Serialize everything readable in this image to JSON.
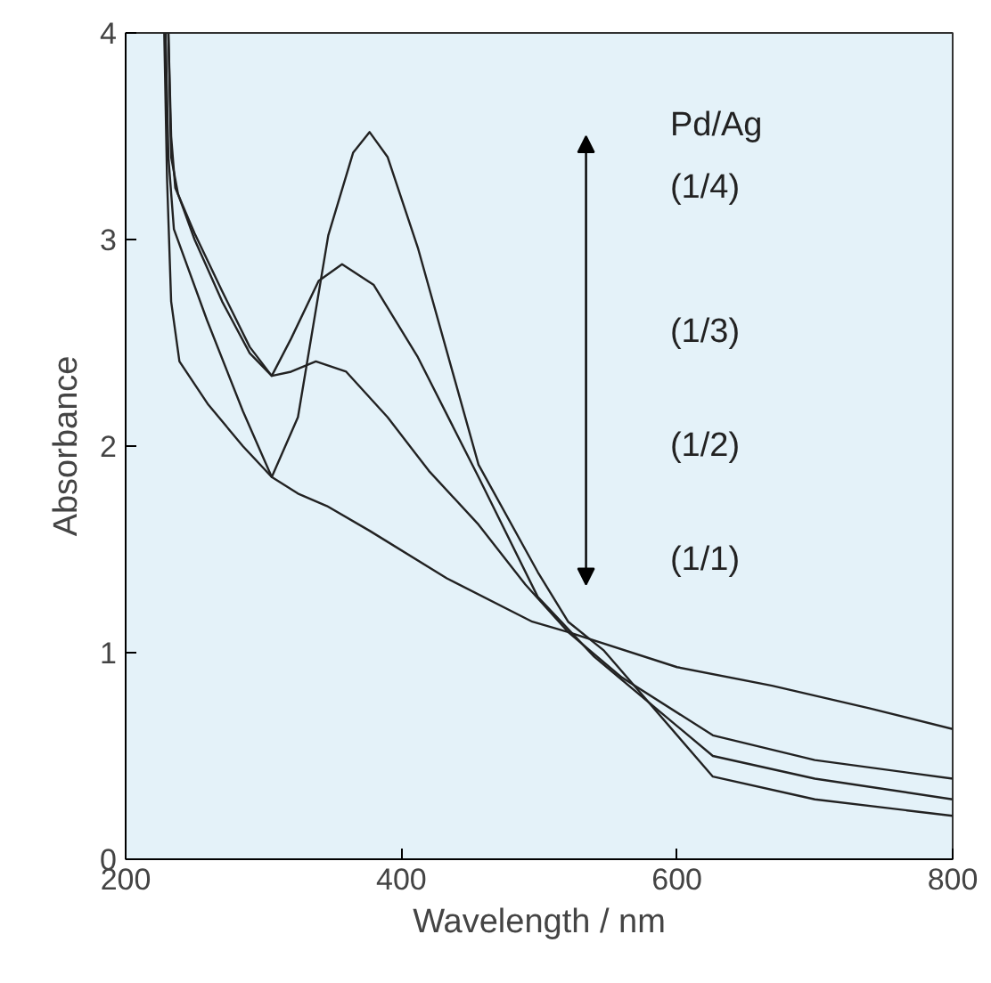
{
  "chart_data": {
    "type": "line",
    "xlabel": "Wavelength / nm",
    "ylabel": "Absorbance",
    "xlim": [
      200,
      800
    ],
    "ylim": [
      0,
      4
    ],
    "xticks": [
      200,
      400,
      600,
      800
    ],
    "yticks": [
      0,
      1,
      2,
      3,
      4
    ],
    "grid": false,
    "marker": "none",
    "line_style": "solid",
    "annotations": [
      "Pd/Ag",
      "(1/4)",
      "(1/3)",
      "(1/2)",
      "(1/1)"
    ],
    "series": [
      {
        "color": "#222222",
        "x": [
          228,
          230,
          233,
          239,
          260,
          285,
          306,
          325,
          346,
          377,
          433,
          495,
          521,
          600,
          669,
          740,
          800
        ],
        "values": [
          4.0,
          3.3,
          2.7,
          2.41,
          2.2,
          2.0,
          1.85,
          1.77,
          1.71,
          1.59,
          1.36,
          1.15,
          1.1,
          0.93,
          0.84,
          0.73,
          0.63
        ]
      },
      {
        "color": "#222222",
        "x": [
          231,
          233,
          238,
          250,
          270,
          290,
          306,
          320,
          338,
          360,
          390,
          420,
          456,
          490,
          521,
          560,
          626,
          700,
          800
        ],
        "values": [
          4.0,
          3.4,
          3.22,
          3.0,
          2.7,
          2.45,
          2.34,
          2.36,
          2.41,
          2.36,
          2.14,
          1.88,
          1.62,
          1.33,
          1.1,
          0.88,
          0.6,
          0.48,
          0.39
        ]
      },
      {
        "color": "#222222",
        "x": [
          231,
          233,
          236,
          250,
          270,
          290,
          306,
          320,
          340,
          357,
          380,
          412,
          456,
          499,
          540,
          626,
          700,
          800
        ],
        "values": [
          4.0,
          3.5,
          3.25,
          3.03,
          2.75,
          2.48,
          2.34,
          2.52,
          2.8,
          2.88,
          2.78,
          2.43,
          1.85,
          1.27,
          0.98,
          0.5,
          0.39,
          0.29
        ]
      },
      {
        "color": "#222222",
        "x": [
          229,
          231,
          235,
          259,
          285,
          306,
          325,
          347,
          365,
          377,
          390,
          412,
          456,
          499,
          521,
          547,
          626,
          700,
          800
        ],
        "values": [
          4.0,
          3.4,
          3.05,
          2.61,
          2.17,
          1.85,
          2.14,
          3.02,
          3.42,
          3.52,
          3.4,
          2.96,
          1.91,
          1.39,
          1.15,
          1.01,
          0.4,
          0.29,
          0.21
        ]
      }
    ]
  }
}
